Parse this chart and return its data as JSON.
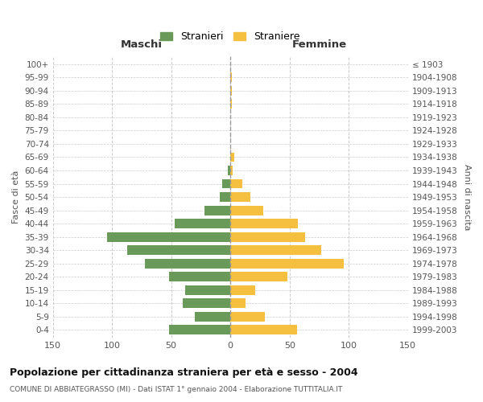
{
  "age_groups": [
    "100+",
    "95-99",
    "90-94",
    "85-89",
    "80-84",
    "75-79",
    "70-74",
    "65-69",
    "60-64",
    "55-59",
    "50-54",
    "45-49",
    "40-44",
    "35-39",
    "30-34",
    "25-29",
    "20-24",
    "15-19",
    "10-14",
    "5-9",
    "0-4"
  ],
  "birth_years": [
    "≤ 1903",
    "1904-1908",
    "1909-1913",
    "1914-1918",
    "1919-1923",
    "1924-1928",
    "1929-1933",
    "1934-1938",
    "1939-1943",
    "1944-1948",
    "1949-1953",
    "1954-1958",
    "1959-1963",
    "1964-1968",
    "1969-1973",
    "1974-1978",
    "1979-1983",
    "1984-1988",
    "1989-1993",
    "1994-1998",
    "1999-2003"
  ],
  "males": [
    0,
    0,
    0,
    0,
    0,
    0,
    0,
    0,
    2,
    7,
    9,
    22,
    47,
    104,
    87,
    72,
    52,
    38,
    40,
    30,
    52
  ],
  "females": [
    0,
    1,
    1,
    1,
    0,
    0,
    0,
    3,
    2,
    10,
    17,
    28,
    57,
    63,
    77,
    96,
    48,
    21,
    13,
    29,
    56
  ],
  "male_color": "#6a9a5a",
  "female_color": "#f5c040",
  "center_line_color": "#999999",
  "grid_color": "#cccccc",
  "bg_color": "#ffffff",
  "title": "Popolazione per cittadinanza straniera per età e sesso - 2004",
  "subtitle": "COMUNE DI ABBIATEGRASSO (MI) - Dati ISTAT 1° gennaio 2004 - Elaborazione TUTTITALIA.IT",
  "xlabel_left": "Maschi",
  "xlabel_right": "Femmine",
  "ylabel_left": "Fasce di età",
  "ylabel_right": "Anni di nascita",
  "legend_males": "Stranieri",
  "legend_females": "Straniere",
  "xlim": 150
}
